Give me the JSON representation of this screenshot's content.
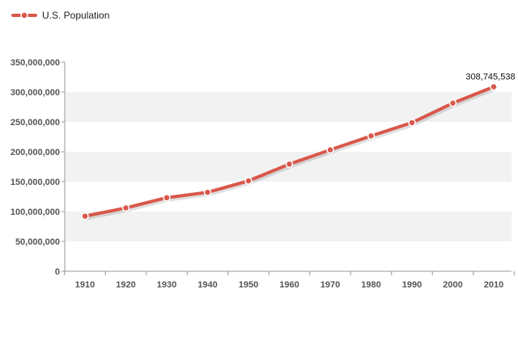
{
  "chart_data": {
    "type": "line",
    "title": "",
    "xlabel": "",
    "ylabel": "",
    "categories": [
      "1910",
      "1920",
      "1930",
      "1940",
      "1950",
      "1960",
      "1970",
      "1980",
      "1990",
      "2000",
      "2010"
    ],
    "series": [
      {
        "name": "U.S. Population",
        "color": "#d9574a",
        "values": [
          92228496,
          106021537,
          123202624,
          132164569,
          151325798,
          179323175,
          203211926,
          226545805,
          248709873,
          281421906,
          308745538
        ]
      }
    ],
    "y_ticks": [
      "0",
      "50,000,000",
      "100,000,000",
      "150,000,000",
      "200,000,000",
      "250,000,000",
      "300,000,000",
      "350,000,000"
    ],
    "ylim": [
      0,
      350000000
    ],
    "grid": "alternating-bands",
    "band_color": "#f2f2f2",
    "legend_position": "top-left",
    "annotations": [
      {
        "category": "2010",
        "text": "308,745,538"
      }
    ]
  }
}
